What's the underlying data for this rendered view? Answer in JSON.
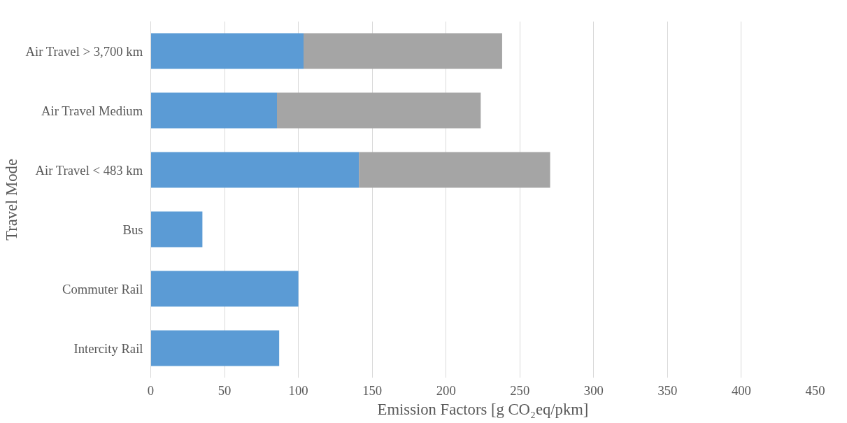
{
  "chart_data": {
    "type": "bar",
    "orientation": "horizontal",
    "stacked": true,
    "xlabel": "Emission Factors [g CO₂eq/pkm]",
    "ylabel": "Travel Mode",
    "categories": [
      "Air Travel > 3,700 km",
      "Air Travel Medium",
      "Air Travel < 483 km",
      "Bus",
      "Commuter Rail",
      "Intercity Rail"
    ],
    "series": [
      {
        "color": "#5b9bd5",
        "values": [
          103.5,
          85.5,
          141,
          35,
          100,
          87
        ]
      },
      {
        "color": "#a5a5a5",
        "values": [
          134.5,
          138,
          129.5,
          null,
          null,
          null
        ]
      }
    ],
    "xlim": [
      0,
      450
    ],
    "xticks": [
      0,
      50,
      100,
      150,
      200,
      250,
      300,
      350,
      400,
      450
    ],
    "grid": "x"
  }
}
